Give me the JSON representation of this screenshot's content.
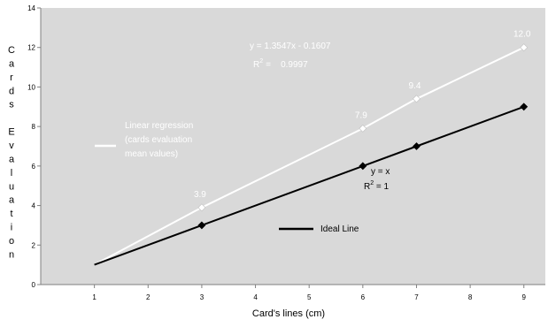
{
  "chart_data": {
    "type": "line",
    "xlabel": "Card's lines (cm)",
    "ylabel": "Cards Evaluation",
    "xlim": [
      0,
      9.4
    ],
    "ylim": [
      0,
      14
    ],
    "xticks": [
      1,
      2,
      3,
      4,
      5,
      6,
      7,
      8,
      9
    ],
    "yticks": [
      0,
      2,
      4,
      6,
      8,
      10,
      12,
      14
    ],
    "grid": false,
    "background": "#d9d9d9",
    "series": [
      {
        "name": "Linear regression (cards evaluation mean values)",
        "color": "#ffffff",
        "marker": "diamond",
        "x": [
          1,
          3,
          6,
          7,
          9
        ],
        "y": [
          1,
          3.9,
          7.9,
          9.4,
          12.0
        ],
        "point_labels": [
          "",
          "3.9",
          "7.9",
          "9.4",
          "12.0"
        ]
      },
      {
        "name": "Ideal Line",
        "color": "#000000",
        "marker": "diamond",
        "x": [
          1,
          3,
          6,
          7,
          9
        ],
        "y": [
          1,
          3,
          6,
          7,
          9
        ]
      }
    ],
    "annotations": {
      "regression_equation": "y = 1.3547x - 0.1607",
      "regression_r2_label": "R",
      "regression_r2_sup": "2",
      "regression_r2_value": "=    0.9997",
      "ideal_equation": "y = x",
      "ideal_r2_label": "R",
      "ideal_r2_sup": "2",
      "ideal_r2_value": " = 1"
    },
    "legend": {
      "regression_lines": [
        "Linear regression",
        "(cards evaluation",
        "mean values)"
      ],
      "ideal": "Ideal Line"
    }
  }
}
